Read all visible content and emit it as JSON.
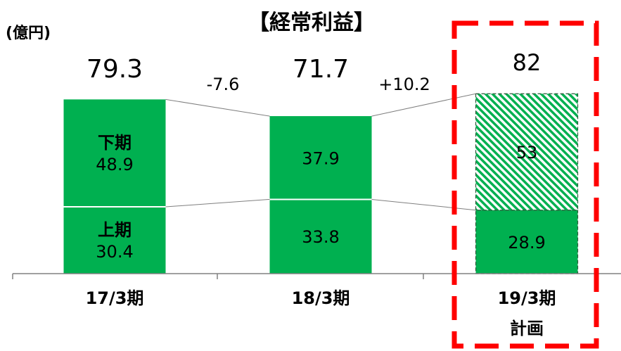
{
  "chart_data": {
    "type": "bar",
    "title": "【経常利益】",
    "unit_label": "(億円)",
    "ylim": [
      0,
      90
    ],
    "grid": false,
    "legend": "none",
    "categories": [
      {
        "line1": "17/3期",
        "line2": ""
      },
      {
        "line1": "18/3期",
        "line2": ""
      },
      {
        "line1": "19/3期",
        "line2": "計画"
      }
    ],
    "series": [
      {
        "name": "上期",
        "values": [
          30.4,
          33.8,
          28.9
        ],
        "labels": [
          "上期\n30.4",
          "33.8",
          "28.9"
        ]
      },
      {
        "name": "下期",
        "values": [
          48.9,
          37.9,
          53
        ],
        "labels": [
          "下期\n48.9",
          "37.9",
          "53"
        ]
      }
    ],
    "totals": [
      "79.3",
      "71.7",
      "82"
    ],
    "changes": [
      "-7.6",
      "+10.2"
    ],
    "highlighted_category": 2,
    "colors": {
      "bar": "#00b050",
      "hatch": "#00b050",
      "highlight": "#ff0000",
      "connector": "#7f7f7f",
      "axis": "#808080"
    }
  }
}
